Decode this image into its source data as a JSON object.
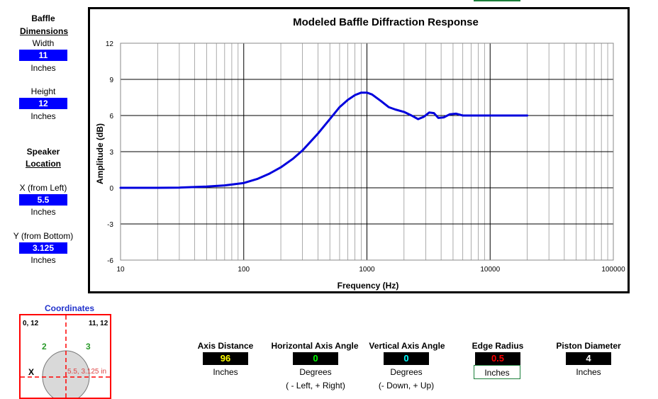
{
  "sidebar": {
    "baffle_title": "Baffle",
    "dimensions_title": "Dimensions",
    "width_label": "Width",
    "width_value": "11",
    "width_unit": "Inches",
    "height_label": "Height",
    "height_value": "12",
    "height_unit": "Inches",
    "speaker_title": "Speaker",
    "location_title": "Location",
    "x_label": "X (from Left)",
    "x_value": "5.5",
    "x_unit": "Inches",
    "y_label": "Y (from Bottom)",
    "y_value": "3.125",
    "y_unit": "Inches"
  },
  "coordinates": {
    "title": "Coordinates",
    "top_left": "0, 12",
    "top_right": "11, 12",
    "quadrant_2": "2",
    "quadrant_3": "3",
    "x_marker": "X",
    "position_text": "5.5, 3.125 in"
  },
  "params": {
    "axis_distance_label": "Axis Distance",
    "axis_distance_value": "96",
    "axis_distance_unit": "Inches",
    "h_angle_label": "Horizontal Axis Angle",
    "h_angle_value": "0",
    "h_angle_unit": "Degrees",
    "h_angle_note": "( - Left, + Right)",
    "v_angle_label": "Vertical Axis Angle",
    "v_angle_value": "0",
    "v_angle_unit": "Degrees",
    "v_angle_note": "(- Down, + Up)",
    "edge_radius_label": "Edge Radius",
    "edge_radius_value": "0.5",
    "edge_radius_unit": "Inches",
    "piston_label": "Piston Diameter",
    "piston_value": "4",
    "piston_unit": "Inches"
  },
  "colors": {
    "accent_blue": "#0000ff",
    "axis_value_yellow": "#ffff00",
    "h_angle_green": "#00ff00",
    "v_angle_cyan": "#00ffff",
    "edge_red": "#ff0000",
    "piston_white": "#ffffff",
    "curve": "#0000dd",
    "coord_border": "#ff0000"
  },
  "chart_data": {
    "type": "line",
    "title": "Modeled Baffle Diffraction Response",
    "xlabel": "Frequency (Hz)",
    "ylabel": "Amplitude (dB)",
    "x_scale": "log",
    "xlim": [
      10,
      100000
    ],
    "ylim": [
      -6,
      12
    ],
    "x_ticks": [
      10,
      100,
      1000,
      10000,
      100000
    ],
    "y_ticks": [
      -6,
      -3,
      0,
      3,
      6,
      9,
      12
    ],
    "grid": true,
    "legend": "none",
    "series": [
      {
        "x": [
          10,
          20,
          30,
          50,
          70,
          100,
          130,
          160,
          200,
          250,
          300,
          400,
          500,
          600,
          700,
          800,
          900,
          1000,
          1100,
          1300,
          1500,
          1700,
          2000,
          2300,
          2600,
          2900,
          3200,
          3500,
          3800,
          4200,
          4700,
          5300,
          6000,
          7000,
          8000,
          10000,
          13000,
          16000,
          20000
        ],
        "y": [
          0,
          0,
          0.02,
          0.1,
          0.2,
          0.4,
          0.75,
          1.15,
          1.7,
          2.4,
          3.1,
          4.5,
          5.7,
          6.7,
          7.3,
          7.7,
          7.9,
          7.9,
          7.75,
          7.2,
          6.7,
          6.5,
          6.3,
          6.0,
          5.7,
          5.9,
          6.25,
          6.2,
          5.8,
          5.85,
          6.1,
          6.15,
          6.0,
          6.0,
          6.0,
          6.0,
          6.0,
          6.0,
          6.0
        ]
      }
    ]
  }
}
